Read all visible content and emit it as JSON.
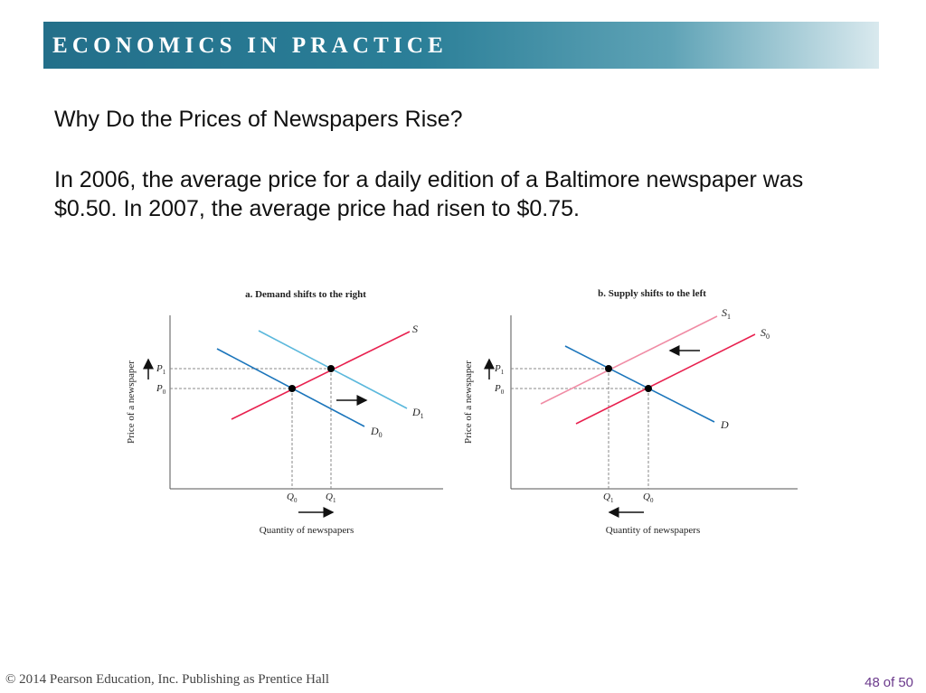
{
  "slide": {
    "banner_title": "ECONOMICS IN PRACTICE",
    "subtitle": "Why Do the Prices of Newspapers Rise?",
    "body_line1": "In 2006, the average price for a daily edition of a Baltimore newspaper was",
    "body_line2": "$0.50. In 2007, the average price had risen to $0.75.",
    "banner_colors": [
      "#236f8a",
      "#5fa3b6"
    ]
  },
  "panels": [
    {
      "title": "a. Demand shifts to the right",
      "ylabel": "Price of a newspaper",
      "xlabel": "Quantity of newspapers",
      "tick_labels": {
        "p1_base": "P",
        "p1_sub": "1",
        "p0_base": "P",
        "p0_sub": "0",
        "qa_base": "Q",
        "qa_sub": "0",
        "qb_base": "Q",
        "qb_sub": "1"
      },
      "curve_labels": {
        "supply": {
          "base": "S",
          "sub": ""
        },
        "old_demand": {
          "base": "D",
          "sub": "0"
        },
        "new_demand": {
          "base": "D",
          "sub": "1"
        }
      },
      "colors": {
        "supply": "#e8214f",
        "old_demand": "#1b75bb",
        "new_demand": "#5bb8dc"
      }
    },
    {
      "title": "b. Supply shifts to the left",
      "ylabel": "Price of a newspaper",
      "xlabel": "Quantity of newspapers",
      "tick_labels": {
        "p1_base": "P",
        "p1_sub": "1",
        "p0_base": "P",
        "p0_sub": "0",
        "qa_base": "Q",
        "qa_sub": "1",
        "qb_base": "Q",
        "qb_sub": "0"
      },
      "curve_labels": {
        "demand": {
          "base": "D",
          "sub": ""
        },
        "old_supply": {
          "base": "S",
          "sub": "0"
        },
        "new_supply": {
          "base": "S",
          "sub": "1"
        }
      },
      "colors": {
        "demand": "#1b75bb",
        "old_supply": "#e8214f",
        "new_supply": "#f08ca5"
      }
    }
  ],
  "footer": {
    "copyright": "© 2014 Pearson Education, Inc. Publishing as Prentice Hall",
    "page_current": "48",
    "page_of": "of",
    "page_total": "50"
  }
}
